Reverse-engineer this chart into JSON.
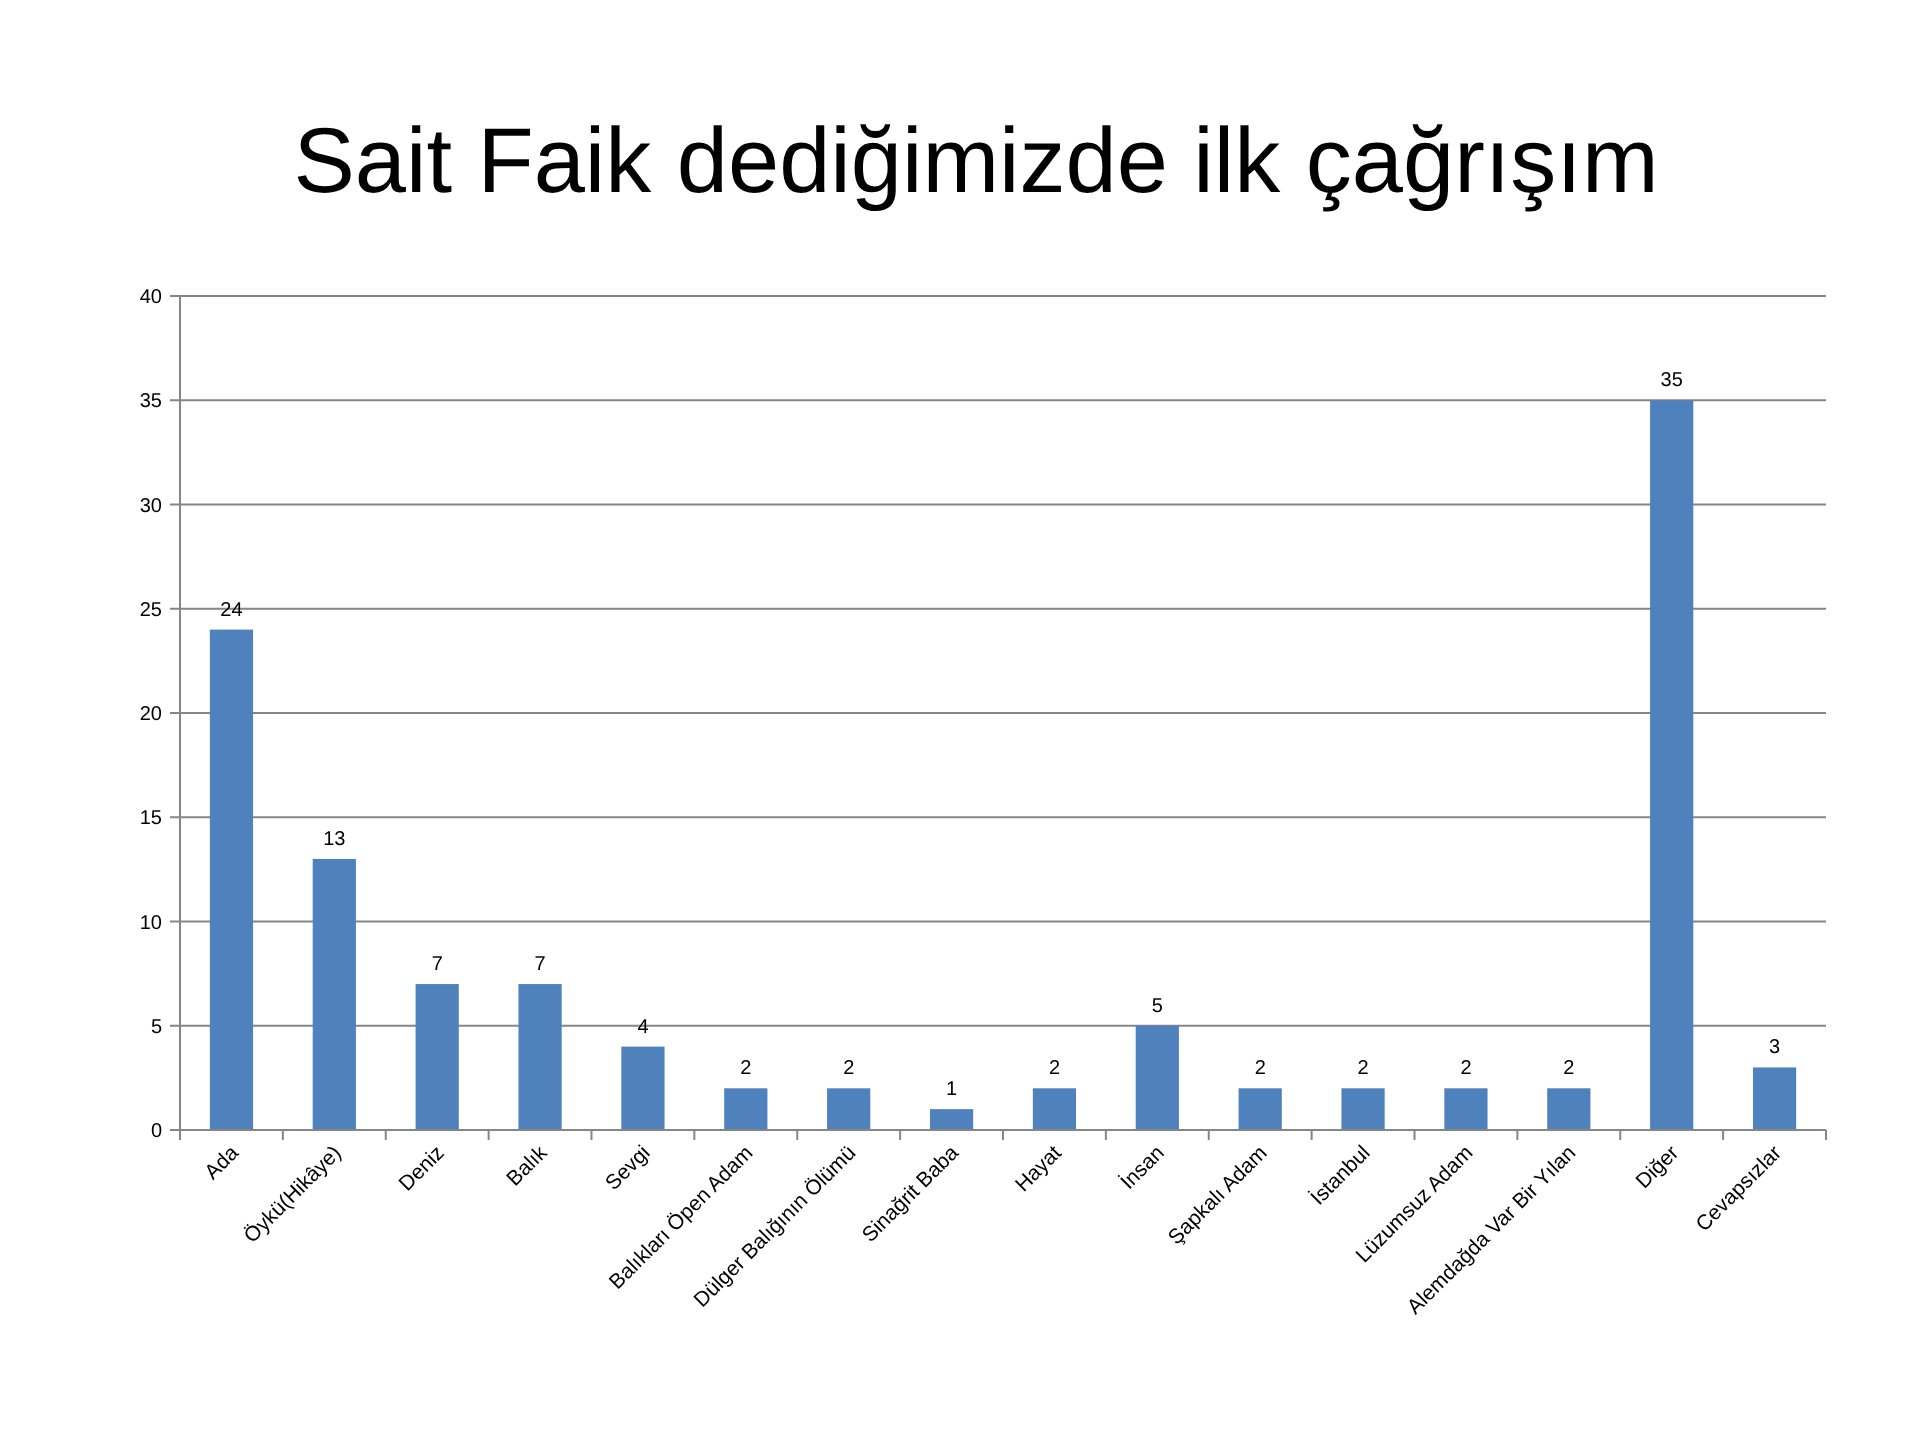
{
  "chart_data": {
    "type": "bar",
    "title": "Sait Faik dediğimizde ilk çağrışım",
    "categories": [
      "Ada",
      "Öykü(Hikâye)",
      "Deniz",
      "Balık",
      "Sevgi",
      "Balıkları Öpen Adam",
      "Dülger Balığının Ölümü",
      "Sinağrit Baba",
      "Hayat",
      "İnsan",
      "Şapkalı Adam",
      "İstanbul",
      "Lüzumsuz Adam",
      "Alemdağda Var Bir Yılan",
      "Diğer",
      "Cevapsızlar"
    ],
    "values": [
      24,
      13,
      7,
      7,
      4,
      2,
      2,
      1,
      2,
      5,
      2,
      2,
      2,
      2,
      35,
      3
    ],
    "color": "#4f81bd",
    "ylim": [
      0,
      40
    ],
    "yticks": [
      0,
      5,
      10,
      15,
      20,
      25,
      30,
      35,
      40
    ],
    "grid": "y",
    "data_labels": true
  }
}
